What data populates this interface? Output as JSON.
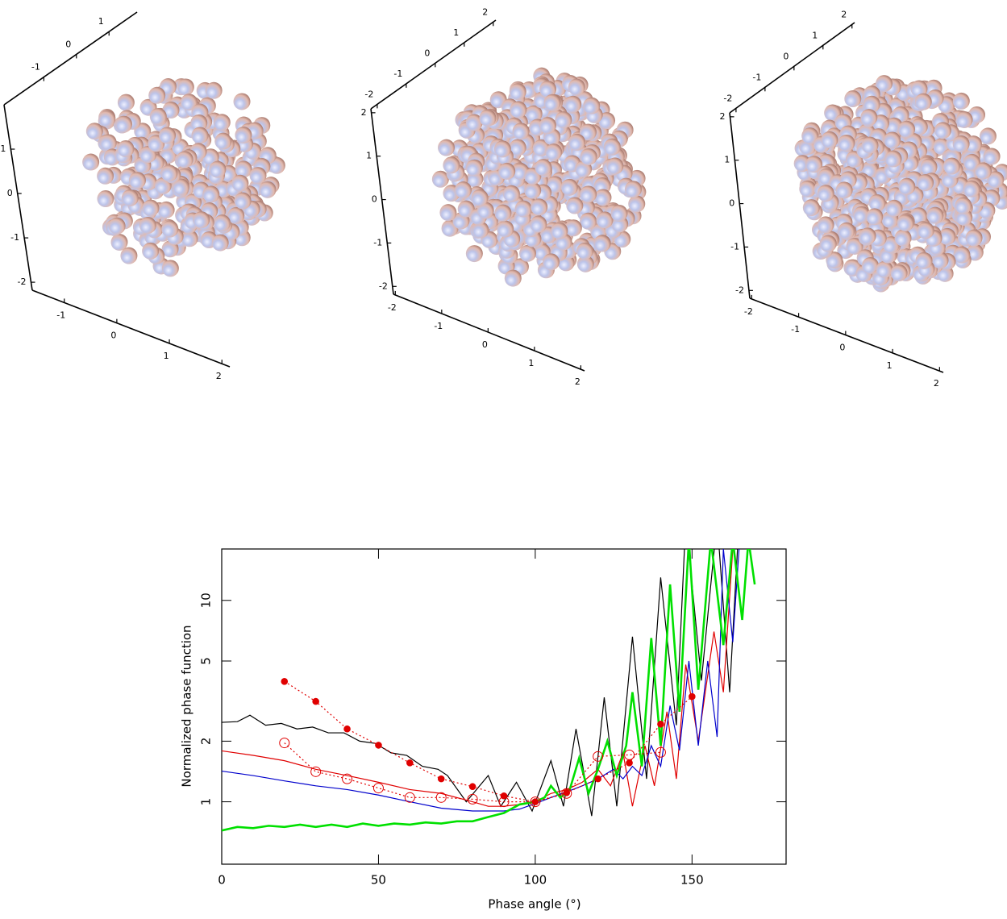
{
  "chart_data": [
    {
      "type": "spheres3d",
      "ylim": [
        -2.22,
        1.86
      ],
      "yticks": [
        -1,
        0,
        1
      ],
      "zlim": [
        -2.18,
        2.0
      ],
      "zticks": [
        -2,
        -1,
        0,
        1
      ],
      "xlim": [
        -1.61,
        2.15
      ],
      "xticks": [
        -1,
        0,
        1,
        2
      ]
    },
    {
      "type": "spheres3d",
      "ylim": [
        -2.22,
        2.09
      ],
      "yticks": [
        -2,
        -1,
        0,
        1,
        2
      ],
      "zlim": [
        -2.18,
        2.09
      ],
      "zticks": [
        -2,
        -1,
        0,
        1,
        2
      ],
      "xlim": [
        -2.04,
        2.08
      ],
      "xticks": [
        -2,
        -1,
        0,
        1,
        2
      ]
    },
    {
      "type": "spheres3d",
      "ylim": [
        -2.22,
        2.09
      ],
      "yticks": [
        -2,
        -1,
        0,
        1,
        2
      ],
      "zlim": [
        -2.18,
        2.09
      ],
      "zticks": [
        -2,
        -1,
        0,
        1,
        2
      ],
      "xlim": [
        -2.04,
        2.08
      ],
      "xticks": [
        -2,
        -1,
        0,
        1,
        2
      ]
    },
    {
      "type": "line",
      "x_label": "Phase angle (°)",
      "y_label": "Normalized phase function",
      "log_y": true,
      "xlim": [
        0,
        180
      ],
      "xticks": [
        0,
        50,
        100,
        150
      ],
      "ylim": [
        0.49,
        18
      ],
      "yticks": [
        1,
        2,
        5,
        10
      ],
      "series": [
        {
          "color": "#000000",
          "line_width": 1.2,
          "x": [
            0,
            5,
            9,
            14,
            19,
            24,
            29,
            34,
            39,
            44,
            49,
            54,
            59,
            64,
            69,
            72,
            78,
            85,
            89,
            94,
            99,
            105,
            109,
            113,
            118,
            122,
            126,
            131,
            135.5,
            140,
            145,
            148,
            153,
            158,
            162,
            165
          ],
          "values": [
            2.48,
            2.5,
            2.69,
            2.4,
            2.45,
            2.3,
            2.35,
            2.2,
            2.2,
            2.0,
            1.95,
            1.75,
            1.7,
            1.5,
            1.45,
            1.35,
            1.0,
            1.35,
            0.95,
            1.25,
            0.9,
            1.6,
            0.95,
            2.3,
            0.85,
            3.3,
            0.95,
            6.6,
            1.3,
            13,
            2.4,
            25,
            4,
            25,
            3.5,
            25
          ]
        },
        {
          "color": "#e00000",
          "line_width": 1.2,
          "x": [
            0,
            10,
            20,
            30,
            40,
            50,
            60,
            70,
            80,
            85,
            90,
            95,
            100,
            105,
            110,
            115,
            120,
            124,
            128,
            131,
            135,
            138,
            142,
            145,
            148,
            152,
            157,
            160,
            163
          ],
          "values": [
            1.79,
            1.7,
            1.6,
            1.45,
            1.35,
            1.25,
            1.15,
            1.1,
            1.0,
            0.95,
            0.95,
            0.97,
            1.0,
            1.1,
            1.15,
            1.25,
            1.45,
            1.2,
            1.75,
            0.95,
            1.9,
            1.2,
            2.8,
            1.3,
            4.8,
            2.0,
            7,
            3.5,
            18
          ]
        },
        {
          "color": "#0000cc",
          "line_width": 1.2,
          "x": [
            0,
            10,
            20,
            30,
            40,
            50,
            60,
            70,
            80,
            90,
            95,
            100,
            105,
            110,
            115,
            120,
            125,
            128,
            131,
            134,
            137,
            140,
            143,
            146,
            149,
            152,
            155,
            158,
            160,
            163,
            165
          ],
          "values": [
            1.42,
            1.35,
            1.27,
            1.2,
            1.15,
            1.08,
            1.0,
            0.93,
            0.9,
            0.9,
            0.92,
            0.98,
            1.05,
            1.12,
            1.2,
            1.3,
            1.45,
            1.3,
            1.5,
            1.35,
            1.9,
            1.5,
            3.0,
            1.8,
            5.0,
            1.9,
            5,
            2.1,
            18,
            6.2,
            18
          ]
        },
        {
          "color": "#00e000",
          "line_width": 2.6,
          "x": [
            0,
            5,
            10,
            15,
            20,
            25,
            30,
            35,
            40,
            45,
            50,
            55,
            60,
            65,
            70,
            75,
            80,
            85,
            90,
            95,
            100,
            103,
            105,
            108,
            111,
            114,
            117,
            120,
            123,
            126,
            129,
            131,
            134,
            137,
            140,
            143,
            146,
            149,
            152,
            156,
            160,
            163,
            166,
            168,
            170
          ],
          "values": [
            0.72,
            0.75,
            0.74,
            0.76,
            0.75,
            0.77,
            0.75,
            0.77,
            0.75,
            0.78,
            0.76,
            0.78,
            0.77,
            0.79,
            0.78,
            0.8,
            0.8,
            0.84,
            0.88,
            0.97,
            1.0,
            1.05,
            1.2,
            1.05,
            1.15,
            1.65,
            1.1,
            1.45,
            2.0,
            1.35,
            1.9,
            3.5,
            1.5,
            6.5,
            1.9,
            12,
            2.8,
            20,
            3.6,
            20,
            6,
            20,
            8,
            20,
            12
          ]
        },
        {
          "color": "#e00000",
          "line_style": "dotted",
          "marker": "filled-circle",
          "x": [
            20,
            30,
            40,
            50,
            60,
            70,
            80,
            90,
            100,
            110,
            120,
            130,
            140,
            150
          ],
          "values": [
            3.96,
            3.15,
            2.3,
            1.91,
            1.56,
            1.3,
            1.19,
            1.07,
            1.0,
            1.11,
            1.3,
            1.56,
            2.43,
            3.33
          ]
        },
        {
          "color": "#e00000",
          "line_style": "dotted",
          "marker": "open-circle",
          "x": [
            20,
            30,
            40,
            50,
            60,
            70,
            80,
            90,
            100,
            110,
            120,
            130,
            140
          ],
          "values": [
            1.96,
            1.41,
            1.3,
            1.17,
            1.05,
            1.05,
            1.03,
            1.0,
            1.0,
            1.1,
            1.68,
            1.71,
            1.76
          ]
        }
      ]
    }
  ]
}
